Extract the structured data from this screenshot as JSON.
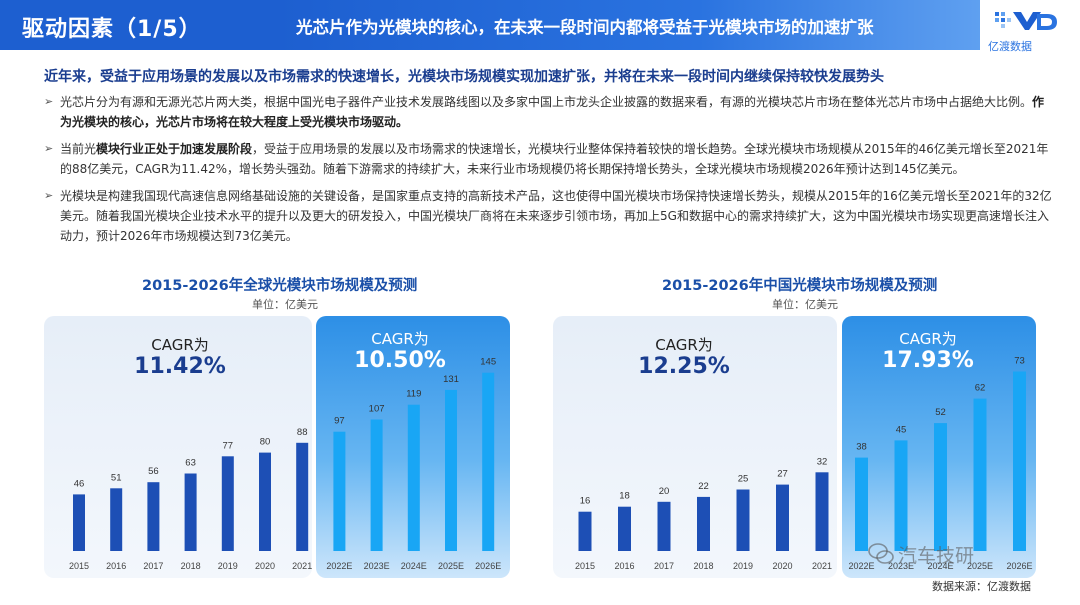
{
  "header": {
    "section_title": "驱动因素（1/5）",
    "headline": "光芯片作为光模块的核心，在未来一段时间内都将受益于光模块市场的加速扩张",
    "brand": "亿渡数据",
    "brand_color": "#1d5fd0"
  },
  "summary": "近年来，受益于应用场景的发展以及市场需求的快速增长，光模块市场规模实现加速扩张，并将在未来一段时间内继续保持较快发展势头",
  "bullets": [
    {
      "marker": "➢",
      "p1": "光芯片分为有源和无源光芯片两大类，根据中国光电子器件产业技术发展路线图以及多家中国上市龙头企业披露的数据来看，有源的光模块芯片市场在整体光芯片市场中占据绝大比例。",
      "bold": "作为光模块的核心，光芯片市场将在较大程度上受光模块市场驱动。",
      "p2": ""
    },
    {
      "marker": "➢",
      "p1": "当前光",
      "bold": "模块行业正处于加速发展阶段",
      "p2": "，受益于应用场景的发展以及市场需求的快速增长，光模块行业整体保持着较快的增长趋势。全球光模块市场规模从2015年的46亿美元增长至2021年的88亿美元，CAGR为11.42%，增长势头强劲。随着下游需求的持续扩大，未来行业市场规模仍将长期保持增长势头，全球光模块市场规模2026年预计达到145亿美元。"
    },
    {
      "marker": "➢",
      "p1": "光模块是构建我国现代高速信息网络基础设施的关键设备，是国家重点支持的高新技术产品，这也使得中国光模块市场保持快速增长势头，规模从2015年的16亿美元增长至2021年的32亿美元。随着我国光模块企业技术水平的提升以及更大的研发投入，中国光模块厂商将在未来逐步引领市场，再加上5G和数据中心的需求持续扩大，这为中国光模块市场实现更高速增长注入动力，预计2026年市场规模达到73亿美元。",
      "bold": "",
      "p2": ""
    }
  ],
  "footer": {
    "source": "数据来源：亿渡数据",
    "watermark": "汽车技研"
  },
  "chart_data": [
    {
      "type": "bar",
      "title": "2015-2026年全球光模块市场规模及预测",
      "unit": "单位：亿美元",
      "categories": [
        "2015",
        "2016",
        "2017",
        "2018",
        "2019",
        "2020",
        "2021",
        "2022E",
        "2023E",
        "2024E",
        "2025E",
        "2026E"
      ],
      "values": [
        46,
        51,
        56,
        63,
        77,
        80,
        88,
        97,
        107,
        119,
        131,
        145
      ],
      "historical_count": 7,
      "cagr": [
        {
          "label": "CAGR为",
          "value": "11.42%"
        },
        {
          "label": "CAGR为",
          "value": "10.50%"
        }
      ],
      "colors": {
        "historical": "#1d4fb5",
        "forecast": "#19a6f5"
      }
    },
    {
      "type": "bar",
      "title": "2015-2026年中国光模块市场规模及预测",
      "unit": "单位：亿美元",
      "categories": [
        "2015",
        "2016",
        "2017",
        "2018",
        "2019",
        "2020",
        "2021",
        "2022E",
        "2023E",
        "2024E",
        "2025E",
        "2026E"
      ],
      "values": [
        16,
        18,
        20,
        22,
        25,
        27,
        32,
        38,
        45,
        52,
        62,
        73
      ],
      "historical_count": 7,
      "cagr": [
        {
          "label": "CAGR为",
          "value": "12.25%"
        },
        {
          "label": "CAGR为",
          "value": "17.93%"
        }
      ],
      "colors": {
        "historical": "#1d4fb5",
        "forecast": "#19a6f5"
      }
    }
  ]
}
